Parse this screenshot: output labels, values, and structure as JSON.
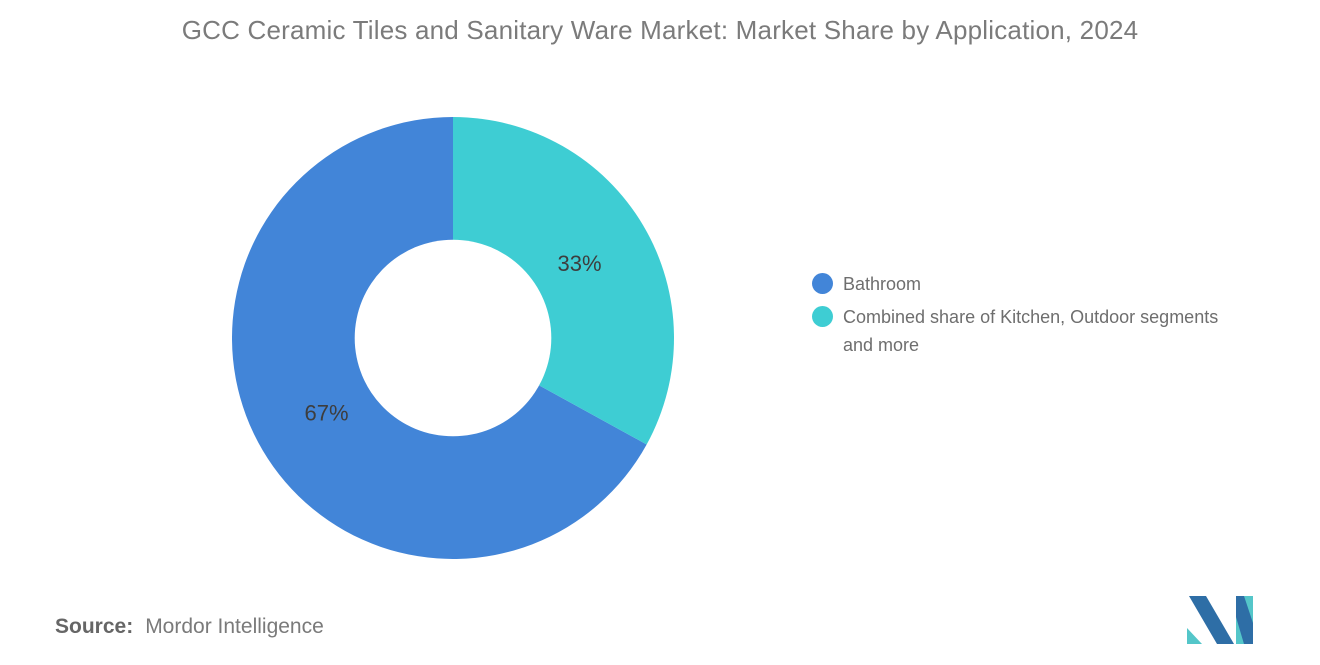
{
  "chart_data": {
    "type": "pie",
    "subtype": "donut",
    "title": "GCC Ceramic Tiles and Sanitary Ware Market: Market Share by Application, 2024",
    "start_angle": "top",
    "direction": "counterclockwise",
    "inner_radius_ratio": 0.445,
    "label_radius_ratio": 0.665,
    "legend_position": "right",
    "data_label_color": "#3d3d3d",
    "slices": [
      {
        "label": "Bathroom",
        "value": 67,
        "data_label": "67%",
        "color": "#4285d8"
      },
      {
        "label": "Combined share of Kitchen, Outdoor segments and more",
        "value": 33,
        "data_label": "33%",
        "color": "#3ecdd3"
      }
    ]
  },
  "source": {
    "label": "Source:",
    "value": "Mordor Intelligence"
  },
  "logo": {
    "name": "mordor-intelligence-logo",
    "colors": {
      "dark_blue": "#2e6ea6",
      "teal": "#54c6c9"
    }
  }
}
